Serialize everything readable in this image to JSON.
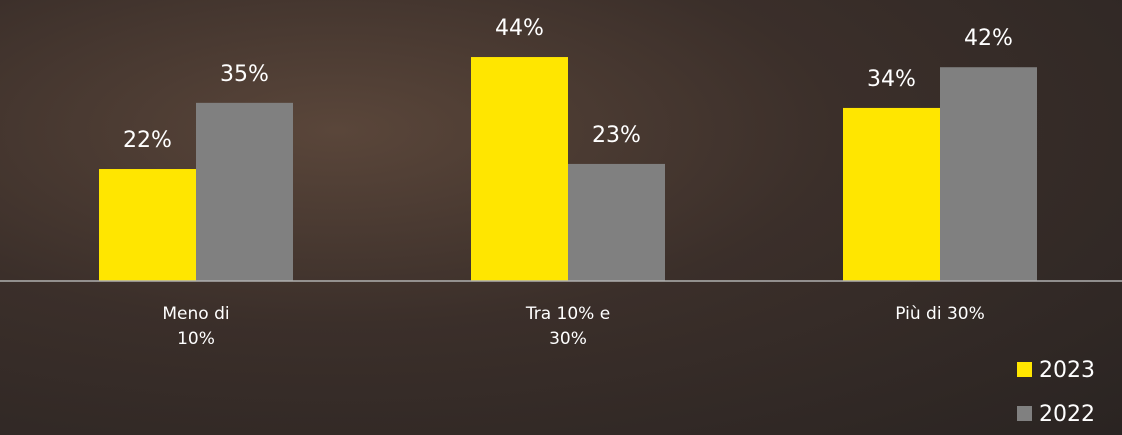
{
  "chart_data": {
    "type": "bar",
    "categories": [
      "Meno di 10%",
      "Tra 10% e 30%",
      "Più di 30%"
    ],
    "series": [
      {
        "name": "2023",
        "color": "#ffe600",
        "values": [
          22,
          44,
          34
        ],
        "value_labels": [
          "22%",
          "44%",
          "34%"
        ]
      },
      {
        "name": "2022",
        "color": "#808080",
        "values": [
          35,
          23,
          42
        ],
        "value_labels": [
          "35%",
          "23%",
          "42%"
        ]
      }
    ],
    "legend": "bottom-right"
  }
}
